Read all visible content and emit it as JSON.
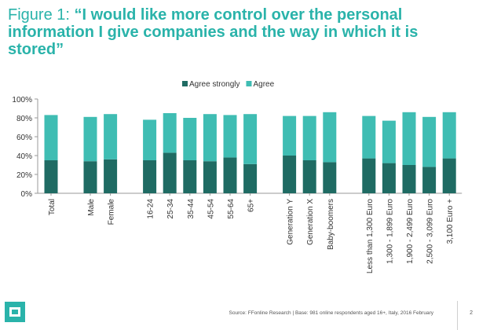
{
  "header": {
    "title_prefix": "Figure 1: ",
    "title_quote": "“I would like more control over the personal information I give companies and the way in which it is stored”"
  },
  "footer": {
    "source": "Source: FFonline Research  |  Base: 981 online respondents aged 16+, Italy, 2016 February",
    "page_number": "2"
  },
  "colors": {
    "agree_strongly": "#1f6b63",
    "agree": "#3fbdb3",
    "title": "#2ab3aa"
  },
  "chart_data": {
    "type": "bar",
    "stacked": true,
    "categories": [
      "Total",
      "Male",
      "Female",
      "16-24",
      "25-34",
      "35-44",
      "45-54",
      "55-64",
      "65+",
      "Generation Y",
      "Generation X",
      "Baby-boomers",
      "Less than 1,300 Euro",
      "1,300 - 1,899 Euro",
      "1,900 - 2,499 Euro",
      "2,500 - 3,099 Euro",
      "3,100 Euro +"
    ],
    "groups": [
      [
        0
      ],
      [
        1,
        2
      ],
      [
        3,
        4,
        5,
        6,
        7,
        8
      ],
      [
        9,
        10,
        11
      ],
      [
        12,
        13,
        14,
        15,
        16
      ]
    ],
    "series": [
      {
        "name": "Agree strongly",
        "values": [
          35,
          34,
          36,
          35,
          43,
          35,
          34,
          38,
          31,
          40,
          35,
          33,
          37,
          32,
          30,
          28,
          37
        ]
      },
      {
        "name": "Agree",
        "values": [
          48,
          47,
          48,
          43,
          42,
          45,
          50,
          45,
          53,
          42,
          47,
          53,
          45,
          45,
          56,
          53,
          49
        ]
      }
    ],
    "y_ticks": [
      "0%",
      "20%",
      "40%",
      "60%",
      "80%",
      "100%"
    ],
    "ylim": [
      0,
      100
    ],
    "legend_position": "top",
    "grid": false
  }
}
